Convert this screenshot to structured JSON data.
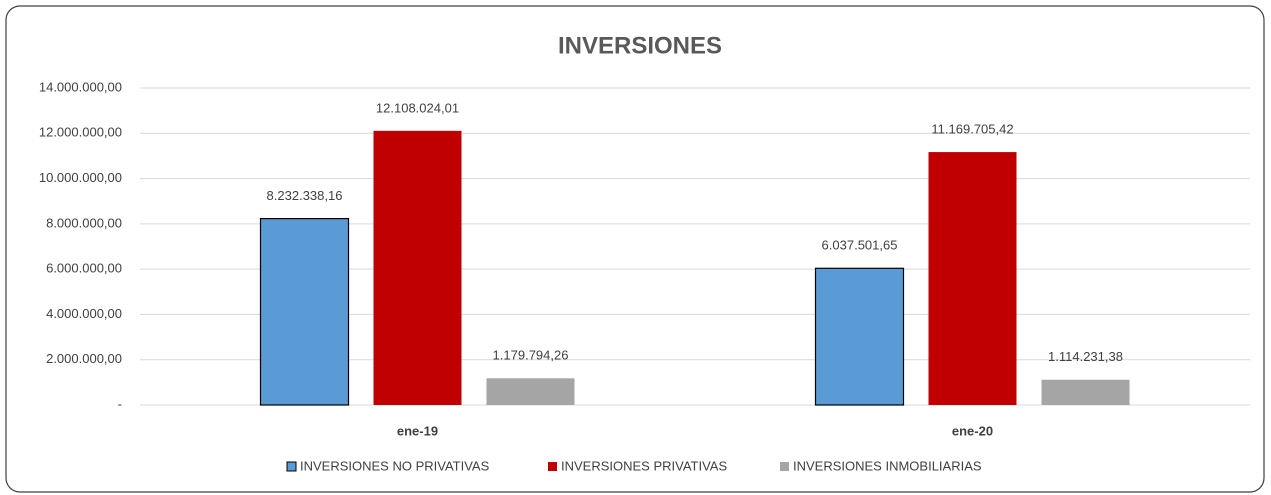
{
  "chart_data": {
    "type": "bar",
    "title": "INVERSIONES",
    "categories": [
      "ene-19",
      "ene-20"
    ],
    "series": [
      {
        "name": "INVERSIONES NO PRIVATIVAS",
        "color": "#5b9bd5",
        "values": [
          8232338.16,
          6037501.65
        ],
        "value_labels": [
          "8.232.338,16",
          "6.037.501,65"
        ]
      },
      {
        "name": "INVERSIONES PRIVATIVAS",
        "color": "#c00000",
        "values": [
          12108024.01,
          11169705.42
        ],
        "value_labels": [
          "12.108.024,01",
          "11.169.705,42"
        ]
      },
      {
        "name": "INVERSIONES INMOBILIARIAS",
        "color": "#a5a5a5",
        "values": [
          1179794.26,
          1114231.38
        ],
        "value_labels": [
          "1.179.794,26",
          "1.114.231,38"
        ]
      }
    ],
    "ylim": [
      0,
      14000000
    ],
    "yticks": [
      {
        "value": 0,
        "label": "-"
      },
      {
        "value": 2000000,
        "label": "2.000.000,00"
      },
      {
        "value": 4000000,
        "label": "4.000.000,00"
      },
      {
        "value": 6000000,
        "label": "6.000.000,00"
      },
      {
        "value": 8000000,
        "label": "8.000.000,00"
      },
      {
        "value": 10000000,
        "label": "10.000.000,00"
      },
      {
        "value": 12000000,
        "label": "12.000.000,00"
      },
      {
        "value": 14000000,
        "label": "14.000.000,00"
      }
    ],
    "grid": true,
    "legend": "bottom"
  }
}
